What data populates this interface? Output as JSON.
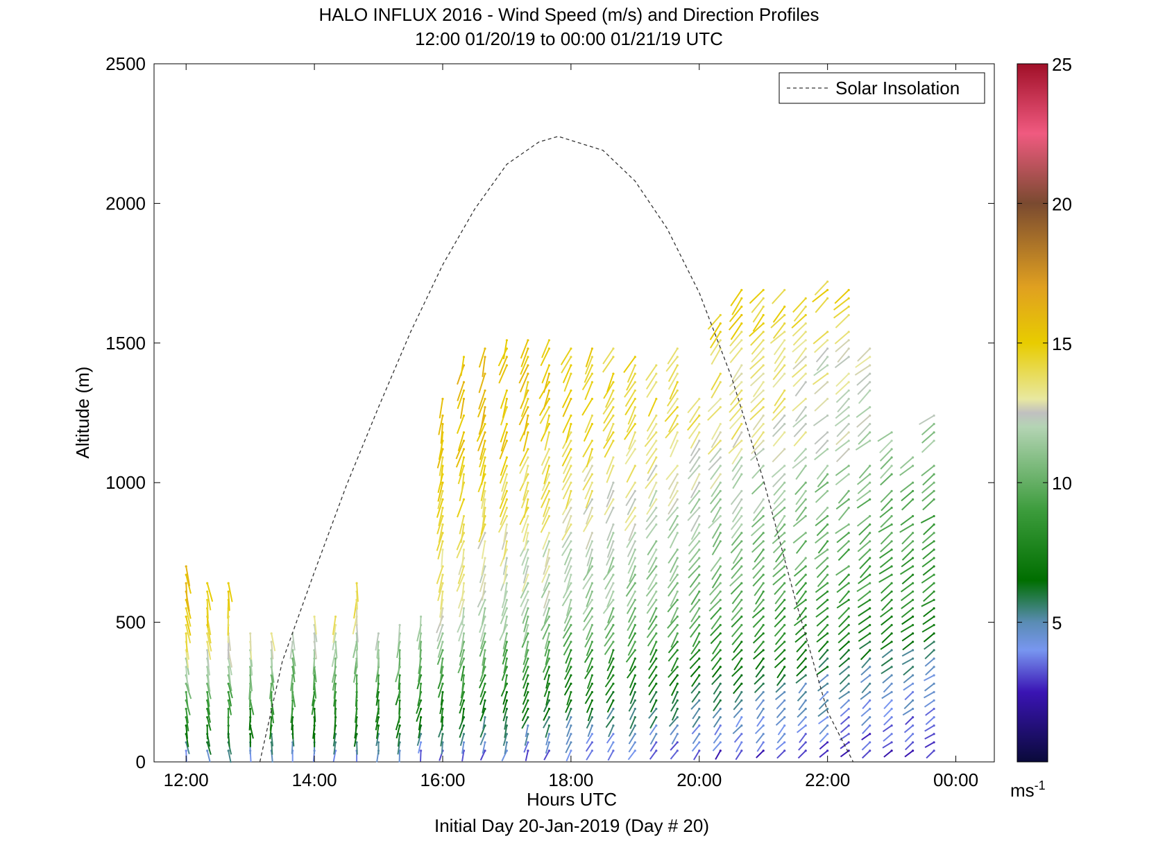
{
  "chart_data": {
    "type": "wind-barb-profile",
    "title": "HALO INFLUX 2016 - Wind Speed (m/s) and Direction Profiles",
    "subtitle": "12:00 01/20/19 to 00:00 01/21/19  UTC",
    "xlabel": "Hours UTC",
    "xlabel2": "Initial Day 20-Jan-2019 (Day # 20)",
    "ylabel": "Altitude (m)",
    "xlim": [
      11.5,
      24.6
    ],
    "ylim": [
      0,
      2500
    ],
    "xticks": [
      12,
      14,
      16,
      18,
      20,
      22,
      24
    ],
    "xtick_labels": [
      "12:00",
      "14:00",
      "16:00",
      "18:00",
      "20:00",
      "22:00",
      "00:00"
    ],
    "yticks": [
      0,
      500,
      1000,
      1500,
      2000,
      2500
    ],
    "ytick_labels": [
      "0",
      "500",
      "1000",
      "1500",
      "2000",
      "2500"
    ],
    "legend": {
      "label": "Solar Insolation",
      "placement": "top-right",
      "style": "dashed"
    },
    "colorbar": {
      "range": [
        0,
        25
      ],
      "ticks": [
        5,
        10,
        15,
        20,
        25
      ],
      "tick_labels": [
        "5",
        "10",
        "15",
        "20",
        "25"
      ],
      "unit_label": "ms",
      "unit_exponent": "-1",
      "stops": [
        {
          "v": 0,
          "c": "#0a0a3a"
        },
        {
          "v": 2.5,
          "c": "#3a14b4"
        },
        {
          "v": 4,
          "c": "#7896f0"
        },
        {
          "v": 5,
          "c": "#5a8cb4"
        },
        {
          "v": 6.5,
          "c": "#006e00"
        },
        {
          "v": 9,
          "c": "#3c9c3c"
        },
        {
          "v": 12,
          "c": "#b4d4b4"
        },
        {
          "v": 12.5,
          "c": "#c0c0c0"
        },
        {
          "v": 13,
          "c": "#e8e8a0"
        },
        {
          "v": 15,
          "c": "#e8cc00"
        },
        {
          "v": 17,
          "c": "#e0a020"
        },
        {
          "v": 20,
          "c": "#7a4a30"
        },
        {
          "v": 22.5,
          "c": "#f05a80"
        },
        {
          "v": 25,
          "c": "#a01028"
        }
      ]
    },
    "solar_insolation": {
      "x": [
        13.15,
        13.5,
        14.0,
        14.5,
        15.0,
        15.5,
        16.0,
        16.5,
        17.0,
        17.5,
        17.8,
        18.5,
        19.0,
        19.5,
        20.0,
        20.5,
        21.0,
        21.5,
        22.0,
        22.4
      ],
      "y": [
        0,
        360,
        680,
        990,
        1270,
        1540,
        1780,
        1980,
        2140,
        2220,
        2240,
        2190,
        2080,
        1910,
        1680,
        1380,
        1010,
        580,
        180,
        0
      ]
    },
    "profile_times": [
      12.0,
      12.33,
      12.66,
      13.0,
      13.33,
      13.66,
      14.0,
      14.33,
      14.66,
      15.0,
      15.33,
      15.66,
      16.0,
      16.33,
      16.66,
      17.0,
      17.33,
      17.66,
      18.0,
      18.33,
      18.66,
      19.0,
      19.33,
      19.66,
      20.0,
      20.33,
      20.66,
      21.0,
      21.33,
      21.66,
      22.0,
      22.33,
      22.66,
      23.0,
      23.33,
      23.66
    ],
    "column_top_altitudes": [
      700,
      650,
      650,
      480,
      470,
      460,
      520,
      540,
      660,
      480,
      510,
      520,
      1300,
      1470,
      1500,
      1520,
      1530,
      1520,
      1500,
      1500,
      1480,
      1470,
      1430,
      1500,
      1300,
      1600,
      1700,
      1700,
      1700,
      1700,
      1740,
      1700,
      1500,
      1200,
      1100,
      1260
    ],
    "level_spacing_m": 30,
    "speed_profile_knots": {
      "heights": [
        0,
        100,
        200,
        300,
        400,
        500,
        600,
        700,
        800,
        900,
        1000,
        1100,
        1200,
        1300,
        1400,
        1500,
        1600,
        1700
      ],
      "early_speeds": [
        3.5,
        6.5,
        8.5,
        10.5,
        12.5,
        14.5,
        15.5,
        16.0,
        16.0,
        17.0,
        17.0,
        17.0,
        18.0,
        18.0,
        18.0,
        17.5,
        17.0,
        17.0
      ],
      "late_speeds": [
        2.0,
        3.0,
        4.0,
        4.5,
        5.5,
        7.0,
        8.0,
        8.5,
        9.0,
        9.5,
        10.0,
        11.0,
        11.5,
        12.0,
        12.0,
        12.0,
        14.0,
        14.0
      ]
    },
    "direction_deg": {
      "early": 170,
      "late": 235
    }
  }
}
